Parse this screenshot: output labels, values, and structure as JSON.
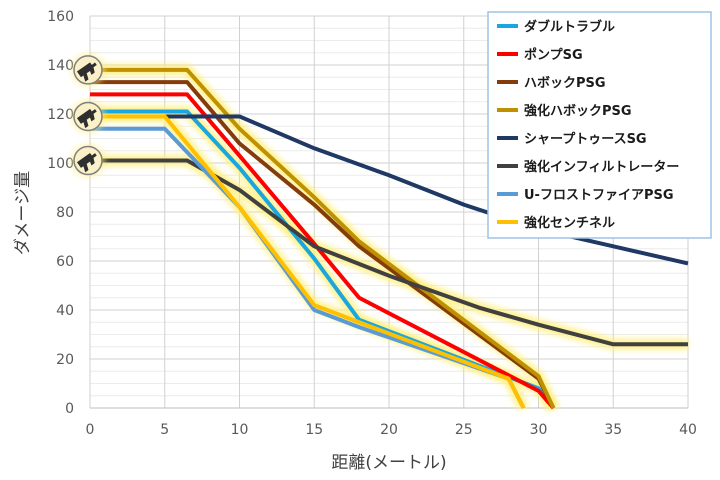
{
  "chart_data": {
    "type": "line",
    "xlabel": "距離(メートル)",
    "ylabel": "ダメージ量",
    "xlim": [
      0,
      40
    ],
    "ylim": [
      0,
      160
    ],
    "x_ticks": [
      "0",
      "5",
      "10",
      "15",
      "20",
      "25",
      "30",
      "35",
      "40"
    ],
    "y_ticks": [
      "0",
      "20",
      "40",
      "60",
      "80",
      "100",
      "120",
      "140",
      "160"
    ],
    "grid": true,
    "legend_position": "top-right",
    "series": [
      {
        "name": "ダブルトラブル",
        "color": "#1aa6de",
        "glow": true,
        "points": [
          [
            0,
            121
          ],
          [
            6.5,
            121
          ],
          [
            10,
            98
          ],
          [
            15,
            61
          ],
          [
            18,
            36
          ],
          [
            30,
            8
          ],
          [
            31,
            0
          ]
        ]
      },
      {
        "name": "ポンプSG",
        "color": "#ff0000",
        "glow": false,
        "points": [
          [
            0,
            128
          ],
          [
            6.5,
            128
          ],
          [
            10,
            103
          ],
          [
            15,
            67
          ],
          [
            18,
            45
          ],
          [
            30,
            7
          ],
          [
            31,
            0
          ]
        ]
      },
      {
        "name": "ハボックPSG",
        "color": "#843c0c",
        "glow": false,
        "points": [
          [
            0,
            133
          ],
          [
            6.5,
            133
          ],
          [
            10,
            108
          ],
          [
            15,
            83
          ],
          [
            18,
            66
          ],
          [
            30,
            12
          ],
          [
            31,
            0
          ]
        ]
      },
      {
        "name": "強化ハボックPSG",
        "color": "#bf9000",
        "glow": true,
        "points": [
          [
            0,
            138
          ],
          [
            6.5,
            138
          ],
          [
            10,
            114
          ],
          [
            15,
            86
          ],
          [
            18,
            68
          ],
          [
            30,
            13
          ],
          [
            31,
            0
          ]
        ]
      },
      {
        "name": "シャープトゥースSG",
        "color": "#203864",
        "glow": false,
        "points": [
          [
            0,
            119
          ],
          [
            10,
            119
          ],
          [
            15,
            106
          ],
          [
            20,
            95
          ],
          [
            25,
            83
          ],
          [
            30,
            73
          ],
          [
            35,
            66
          ],
          [
            40,
            59
          ]
        ]
      },
      {
        "name": "強化インフィルトレーター",
        "color": "#404040",
        "glow": true,
        "points": [
          [
            0,
            101
          ],
          [
            6.5,
            101
          ],
          [
            10,
            89
          ],
          [
            15,
            66
          ],
          [
            20,
            54
          ],
          [
            26,
            41
          ],
          [
            30,
            34
          ],
          [
            35,
            26
          ],
          [
            40,
            26
          ]
        ]
      },
      {
        "name": "U-フロストファイアPSG",
        "color": "#5b9bd5",
        "glow": false,
        "points": [
          [
            0,
            114
          ],
          [
            5,
            114
          ],
          [
            10,
            82
          ],
          [
            15,
            40
          ],
          [
            18,
            33
          ],
          [
            28,
            12
          ],
          [
            29,
            0
          ]
        ]
      },
      {
        "name": "強化センチネル",
        "color": "#ffc000",
        "glow": true,
        "points": [
          [
            0,
            119
          ],
          [
            5,
            119
          ],
          [
            10,
            82
          ],
          [
            15,
            42
          ],
          [
            18,
            35
          ],
          [
            28,
            12
          ],
          [
            29,
            0
          ]
        ]
      }
    ],
    "markers": [
      {
        "name": "gun-icon",
        "y": 138
      },
      {
        "name": "gun-icon",
        "y": 119
      },
      {
        "name": "gun-icon",
        "y": 101
      }
    ]
  }
}
